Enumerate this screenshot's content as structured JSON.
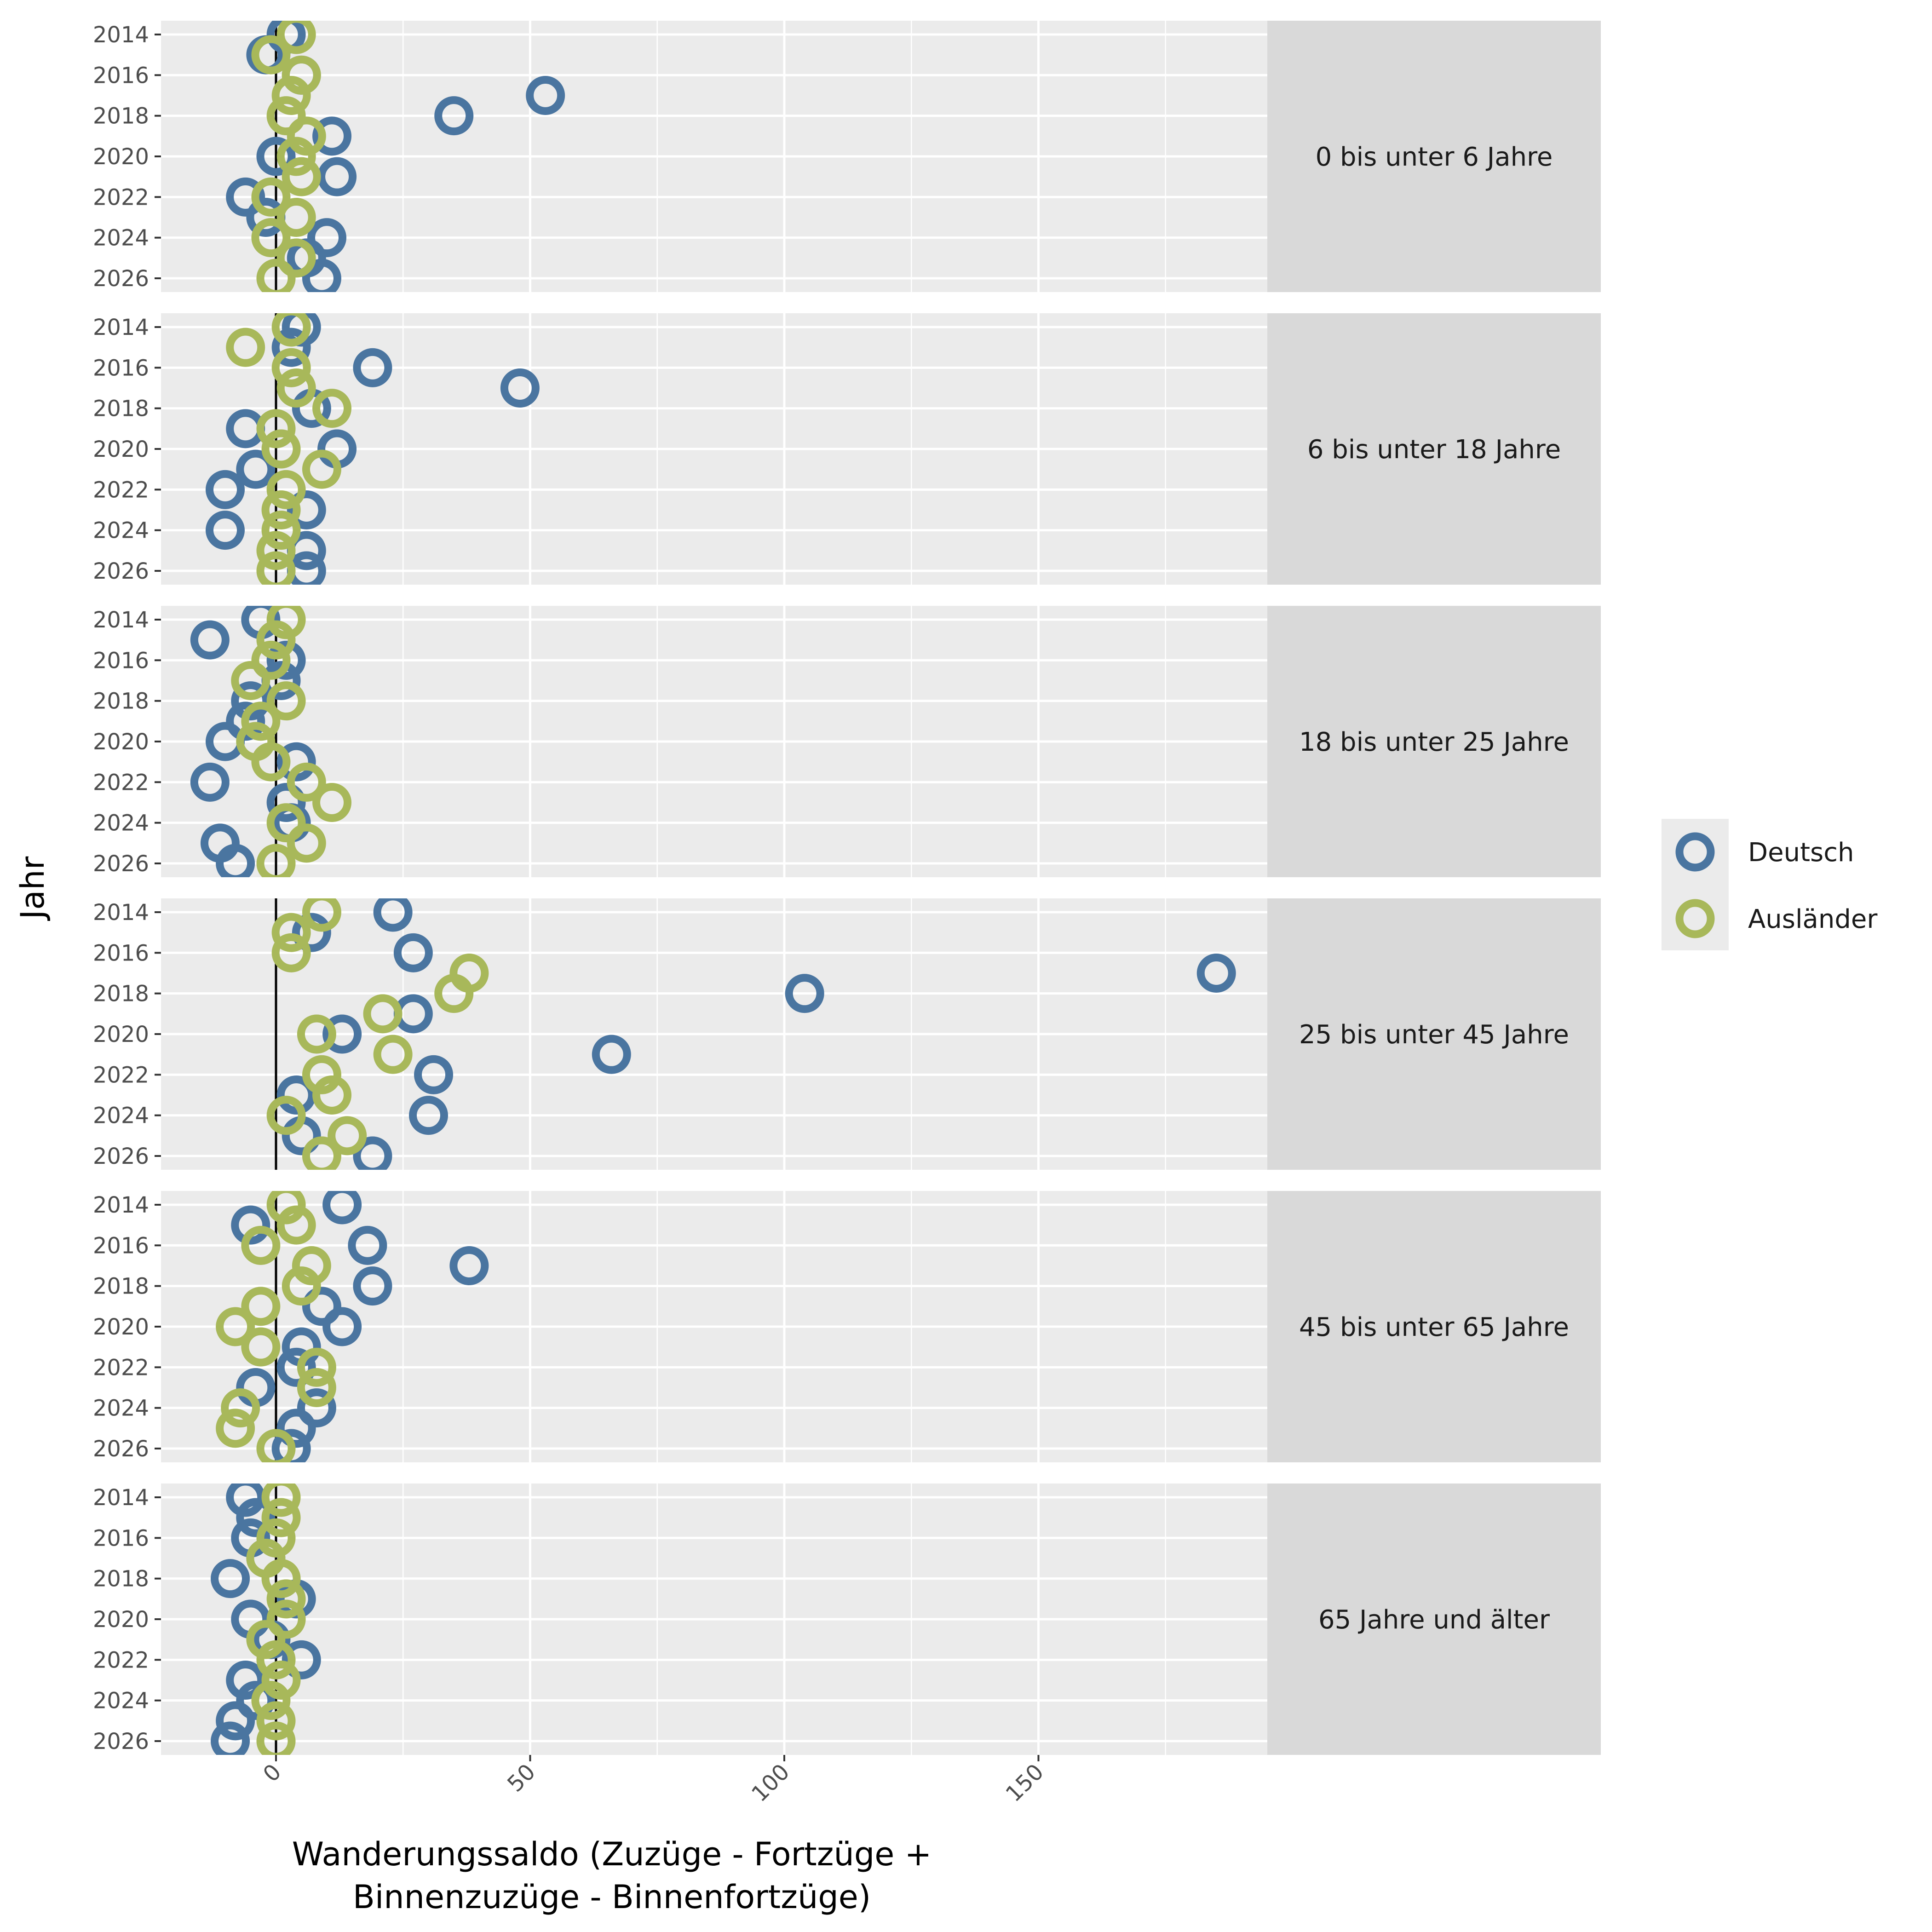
{
  "chart_data": {
    "type": "scatter",
    "title": "",
    "xlabel_lines": [
      "Wanderungssaldo (Zuzüge - Fortzüge +",
      "Binnenzuzüge - Binnenfortzüge)"
    ],
    "ylabel": "Jahr",
    "xlim": [
      -23,
      195
    ],
    "xticks": [
      0,
      50,
      100,
      150
    ],
    "ylim": [
      2013.4,
      2026.6
    ],
    "yticks": [
      2014,
      2016,
      2018,
      2020,
      2022,
      2024,
      2026
    ],
    "reference_line_x": 0,
    "grid": true,
    "legend": {
      "position": "right",
      "items": [
        {
          "name": "Deutsch",
          "color": "#4a75a0"
        },
        {
          "name": "Ausländer",
          "color": "#a8b85a"
        }
      ]
    },
    "years": [
      2014,
      2015,
      2016,
      2017,
      2018,
      2019,
      2020,
      2021,
      2022,
      2023,
      2024,
      2025,
      2026
    ],
    "facets": [
      {
        "label": "0 bis unter 6 Jahre",
        "series": [
          {
            "name": "Deutsch",
            "values": [
              2,
              -2,
              5,
              53,
              35,
              11,
              0,
              12,
              -6,
              -2,
              10,
              6,
              9
            ]
          },
          {
            "name": "Ausländer",
            "values": [
              4,
              -1,
              5,
              3,
              2,
              6,
              4,
              5,
              -1,
              4,
              -1,
              4,
              0
            ]
          }
        ]
      },
      {
        "label": "6 bis unter 18 Jahre",
        "series": [
          {
            "name": "Deutsch",
            "values": [
              5,
              3,
              19,
              48,
              7,
              -6,
              12,
              -4,
              -10,
              6,
              -10,
              6,
              6
            ]
          },
          {
            "name": "Ausländer",
            "values": [
              3,
              -6,
              3,
              4,
              11,
              0,
              1,
              9,
              2,
              1,
              1,
              0,
              0
            ]
          }
        ]
      },
      {
        "label": "18 bis unter 25 Jahre",
        "series": [
          {
            "name": "Deutsch",
            "values": [
              -3,
              -13,
              2,
              1,
              -5,
              -6,
              -10,
              4,
              -13,
              2,
              3,
              -11,
              -8
            ]
          },
          {
            "name": "Ausländer",
            "values": [
              2,
              0,
              -1,
              -5,
              2,
              -3,
              -4,
              -1,
              6,
              11,
              2,
              6,
              0
            ]
          }
        ]
      },
      {
        "label": "25 bis unter 45 Jahre",
        "series": [
          {
            "name": "Deutsch",
            "values": [
              23,
              7,
              27,
              185,
              104,
              27,
              13,
              66,
              31,
              4,
              30,
              5,
              19
            ]
          },
          {
            "name": "Ausländer",
            "values": [
              9,
              3,
              3,
              38,
              35,
              21,
              8,
              23,
              9,
              11,
              2,
              14,
              9
            ]
          }
        ]
      },
      {
        "label": "45 bis unter 65 Jahre",
        "series": [
          {
            "name": "Deutsch",
            "values": [
              13,
              -5,
              18,
              38,
              19,
              9,
              13,
              5,
              4,
              -4,
              8,
              4,
              3
            ]
          },
          {
            "name": "Ausländer",
            "values": [
              2,
              4,
              -3,
              7,
              5,
              -3,
              -8,
              -3,
              8,
              8,
              -7,
              -8,
              0
            ]
          }
        ]
      },
      {
        "label": "65 Jahre und älter",
        "series": [
          {
            "name": "Deutsch",
            "values": [
              -6,
              -4,
              -5,
              -2,
              -9,
              4,
              -5,
              -1,
              5,
              -6,
              -4,
              -8,
              -9
            ]
          },
          {
            "name": "Ausländer",
            "values": [
              1,
              1,
              0,
              -2,
              1,
              2,
              2,
              -2,
              0,
              1,
              -1,
              0,
              0
            ]
          }
        ]
      }
    ]
  }
}
